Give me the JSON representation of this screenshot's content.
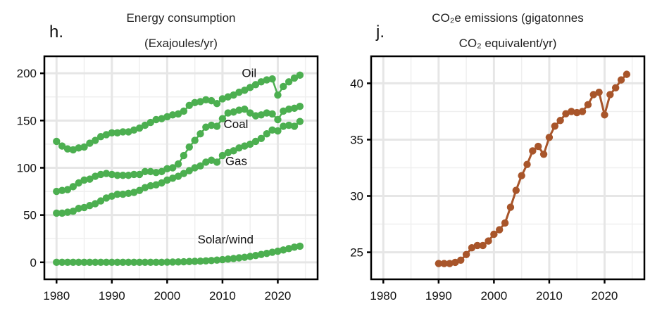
{
  "chart_data": [
    {
      "panel_label": "h.",
      "type": "line",
      "title_lines": [
        "Energy consumption",
        "(Exajoules/yr)"
      ],
      "xlabel": "",
      "ylabel": "",
      "xlim": [
        1977.8,
        2027.2
      ],
      "ylim": [
        -18,
        218
      ],
      "xticks": [
        1980,
        1990,
        2000,
        2010,
        2020
      ],
      "yticks": [
        0,
        50,
        100,
        150,
        200
      ],
      "grid": true,
      "legend": "none (direct labels)",
      "color": "#4caf50",
      "x": [
        1980,
        1981,
        1982,
        1983,
        1984,
        1985,
        1986,
        1987,
        1988,
        1989,
        1990,
        1991,
        1992,
        1993,
        1994,
        1995,
        1996,
        1997,
        1998,
        1999,
        2000,
        2001,
        2002,
        2003,
        2004,
        2005,
        2006,
        2007,
        2008,
        2009,
        2010,
        2011,
        2012,
        2013,
        2014,
        2015,
        2016,
        2017,
        2018,
        2019,
        2020,
        2021,
        2022,
        2023,
        2024
      ],
      "series": [
        {
          "name": "Oil",
          "label_pos": [
            2013.5,
            196
          ],
          "values": [
            128,
            123,
            120,
            119,
            121,
            122,
            126,
            129,
            133,
            135,
            137,
            137,
            138,
            138,
            140,
            142,
            145,
            148,
            151,
            152,
            154,
            156,
            157,
            160,
            166,
            169,
            170,
            172,
            171,
            168,
            173,
            175,
            177,
            180,
            182,
            185,
            188,
            191,
            193,
            194,
            177,
            186,
            191,
            195,
            198
          ]
        },
        {
          "name": "Coal",
          "label_pos": [
            2010.2,
            142
          ],
          "values": [
            75,
            76,
            77,
            80,
            84,
            87,
            88,
            91,
            93,
            94,
            93,
            92,
            92,
            92,
            93,
            93,
            96,
            96,
            95,
            96,
            99,
            100,
            104,
            113,
            122,
            129,
            136,
            143,
            145,
            144,
            152,
            158,
            159,
            161,
            162,
            158,
            155,
            156,
            158,
            157,
            151,
            160,
            162,
            163,
            165
          ]
        },
        {
          "name": "Gas",
          "label_pos": [
            2010.5,
            103
          ],
          "values": [
            52,
            52,
            53,
            54,
            57,
            58,
            60,
            62,
            65,
            68,
            70,
            72,
            72,
            73,
            74,
            76,
            79,
            81,
            82,
            84,
            87,
            89,
            91,
            94,
            97,
            100,
            102,
            106,
            108,
            106,
            113,
            116,
            118,
            121,
            123,
            125,
            128,
            131,
            136,
            140,
            139,
            144,
            145,
            144,
            149
          ]
        },
        {
          "name": "Solar/wind",
          "label_pos": [
            2005.5,
            20
          ],
          "values": [
            0,
            0,
            0,
            0,
            0,
            0,
            0,
            0,
            0,
            0,
            0,
            0,
            0,
            0,
            0,
            0,
            0,
            0,
            0,
            0,
            0.2,
            0.3,
            0.4,
            0.6,
            0.8,
            1,
            1.2,
            1.5,
            1.9,
            2.3,
            2.8,
            3.4,
            4,
            4.7,
            5.3,
            6.2,
            7.2,
            8.3,
            9.4,
            10.6,
            11.7,
            13,
            14.5,
            16,
            17
          ]
        }
      ]
    },
    {
      "panel_label": "j.",
      "type": "line",
      "title_lines": [
        "CO₂e emissions (gigatonnes",
        "CO₂ equivalent/yr)"
      ],
      "xlabel": "",
      "ylabel": "",
      "xlim": [
        1977.8,
        2027.2
      ],
      "ylim": [
        22.6,
        42.4
      ],
      "xticks": [
        1980,
        1990,
        2000,
        2010,
        2020
      ],
      "yticks": [
        25,
        30,
        35,
        40
      ],
      "grid": true,
      "legend": "none",
      "color": "#a8552a",
      "x": [
        1990,
        1991,
        1992,
        1993,
        1994,
        1995,
        1996,
        1997,
        1998,
        1999,
        2000,
        2001,
        2002,
        2003,
        2004,
        2005,
        2006,
        2007,
        2008,
        2009,
        2010,
        2011,
        2012,
        2013,
        2014,
        2015,
        2016,
        2017,
        2018,
        2019,
        2020,
        2021,
        2022,
        2023,
        2024
      ],
      "series": [
        {
          "name": "CO2e emissions",
          "values": [
            24.0,
            24.0,
            24.0,
            24.1,
            24.3,
            24.8,
            25.4,
            25.6,
            25.6,
            26.0,
            26.6,
            27.0,
            27.6,
            29.0,
            30.5,
            31.8,
            32.8,
            34.0,
            34.4,
            33.7,
            35.2,
            36.2,
            36.7,
            37.3,
            37.5,
            37.4,
            37.5,
            38.1,
            39.0,
            39.2,
            37.2,
            39.0,
            39.6,
            40.3,
            40.8
          ]
        }
      ]
    }
  ]
}
